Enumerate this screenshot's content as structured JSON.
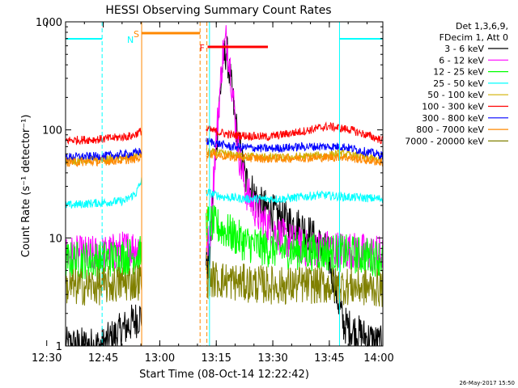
{
  "chart_data": {
    "type": "line",
    "title": "HESSI Observing Summary Count Rates",
    "xlabel": "Start Time (08-Oct-14 12:22:42)",
    "ylabel": "Count Rate (s⁻¹ detector⁻¹)",
    "yscale": "log",
    "ylim": [
      1,
      1000
    ],
    "xlim_minutes": [
      12.3,
      96.5
    ],
    "x_ticks": [
      "12:30",
      "12:45",
      "13:00",
      "13:15",
      "13:30",
      "13:45",
      "14:00"
    ],
    "x_tick_minutes": [
      7.3,
      22.3,
      37.3,
      52.3,
      67.3,
      82.3,
      97.3
    ],
    "y_ticks": [
      "1",
      "10",
      "100",
      "1000"
    ],
    "y_tick_values": [
      1,
      10,
      100,
      1000
    ],
    "legend_header": [
      "Det 1,3,6,9,",
      "FDecim 1, Att 0"
    ],
    "legend_position": "right",
    "footer_date": "26-May-2017 15:50",
    "gaps_minutes": [
      [
        32.5,
        49.5
      ]
    ],
    "series": [
      {
        "name": "3 - 6 keV",
        "color": "#000000",
        "x": [
          12.3,
          22,
          50.5,
          52,
          54,
          55,
          56,
          58,
          60,
          64,
          70,
          76,
          82,
          86,
          90,
          96.5
        ],
        "y": [
          1.0,
          1.0,
          6.0,
          55,
          420,
          560,
          300,
          80,
          35,
          20,
          15,
          12,
          7,
          1.6,
          1.3,
          1.0
        ]
      },
      {
        "name": "6 - 12 keV",
        "color": "#ff00ff",
        "x": [
          12.3,
          22,
          32.5,
          50.5,
          52,
          54,
          55,
          56,
          58,
          60,
          64,
          70,
          76,
          82,
          90,
          96.5
        ],
        "y": [
          7.0,
          7.0,
          8.5,
          9.0,
          60,
          500,
          700,
          380,
          70,
          28,
          15,
          10,
          8.0,
          8.0,
          7.5,
          7.0
        ]
      },
      {
        "name": "12 - 25 keV",
        "color": "#00ff00",
        "x": [
          12.3,
          22,
          32.5,
          50.5,
          56,
          60,
          66,
          76,
          86,
          96.5
        ],
        "y": [
          6.2,
          6.3,
          7.0,
          14,
          11,
          9.0,
          8.0,
          7.5,
          7.2,
          6.5
        ]
      },
      {
        "name": "25 - 50 keV",
        "color": "#00ffff",
        "x": [
          12.3,
          20,
          28,
          31,
          32.5,
          50.5,
          54,
          60,
          70,
          80,
          86,
          96.5
        ],
        "y": [
          20,
          21,
          22,
          26,
          34,
          26,
          24,
          23,
          23,
          25,
          24,
          23
        ]
      },
      {
        "name": "50 - 100 keV",
        "color": "#d0b000",
        "x": [
          12.3,
          22,
          30,
          32.5,
          50.5,
          60,
          70,
          80,
          86,
          96.5
        ],
        "y": [
          52,
          53,
          55,
          62,
          62,
          57,
          55,
          58,
          60,
          52
        ]
      },
      {
        "name": "100 - 300 keV",
        "color": "#ff0000",
        "x": [
          12.3,
          22,
          30,
          32.5,
          50.5,
          56,
          66,
          76,
          82,
          88,
          96.5
        ],
        "y": [
          80,
          82,
          88,
          98,
          100,
          90,
          86,
          98,
          108,
          100,
          80
        ]
      },
      {
        "name": "300 - 800 keV",
        "color": "#0000ff",
        "x": [
          12.3,
          22,
          30,
          32.5,
          50.5,
          56,
          66,
          76,
          86,
          96.5
        ],
        "y": [
          56,
          57,
          60,
          64,
          78,
          70,
          67,
          70,
          70,
          58
        ]
      },
      {
        "name": "800 - 7000 keV",
        "color": "#ff8800",
        "x": [
          12.3,
          22,
          30,
          32.5,
          50.5,
          56,
          66,
          76,
          86,
          96.5
        ],
        "y": [
          50,
          51,
          53,
          56,
          60,
          56,
          54,
          55,
          56,
          50
        ]
      },
      {
        "name": "7000 - 20000 keV",
        "color": "#808000",
        "x": [
          12.3,
          22,
          32.5,
          50.5,
          60,
          70,
          76,
          86,
          96.5
        ],
        "y": [
          3.5,
          3.6,
          4.0,
          4.2,
          3.8,
          3.6,
          3.7,
          3.6,
          3.4
        ]
      }
    ],
    "flags": [
      {
        "label": "N",
        "color": "#00ffff",
        "segments": [
          [
            12.3,
            22.0
          ],
          [
            85.0,
            96.5
          ]
        ]
      },
      {
        "label": "S",
        "color": "#ff8800",
        "segments": [
          [
            32.5,
            48.0
          ]
        ]
      },
      {
        "label": "F",
        "color": "#ff0000",
        "segments": [
          [
            50.0,
            66.0
          ]
        ]
      }
    ],
    "vlines": [
      {
        "minute": 22.0,
        "color": "#00ffff",
        "dashed": true
      },
      {
        "minute": 32.5,
        "color": "#ff8800",
        "dashed": false
      },
      {
        "minute": 48.0,
        "color": "#ff8800",
        "dashed": true
      },
      {
        "minute": 49.8,
        "color": "#ff8800",
        "dashed": true
      },
      {
        "minute": 50.5,
        "color": "#00ffff",
        "dashed": false
      },
      {
        "minute": 85.0,
        "color": "#00ffff",
        "dashed": false
      },
      {
        "minute": 96.5,
        "color": "#00ffff",
        "dashed": true
      }
    ]
  }
}
